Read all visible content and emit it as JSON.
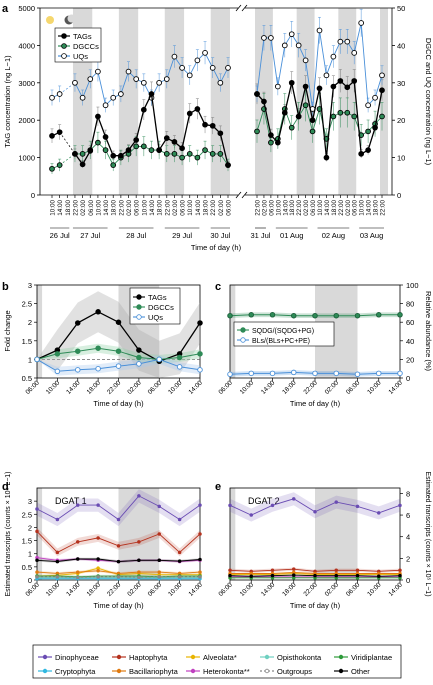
{
  "colors": {
    "night_band": "#d9d9d9",
    "tags": "#000000",
    "dgccs": "#2e8b57",
    "uqs": "#4a90d9",
    "dinophyceae": "#6a4cb3",
    "haptophyta": "#b5321e",
    "alveolata": "#e8b400",
    "bacillariophyta": "#e07a10",
    "heterokonta": "#c040c0",
    "opisthokonta": "#6fd0c0",
    "viridiplantae": "#2e9b3a",
    "cryptophyta": "#30b8e0",
    "outgroups": "#888888",
    "other": "#000000"
  },
  "icons": {
    "sun": "sun-icon",
    "moon": "moon-icon"
  },
  "chart_data": [
    {
      "panel": "a",
      "type": "line",
      "ylabel_left": "TAG concentration (ng L−1)",
      "ylabel_right": "DGCC and UQ concentration (ng L−1)",
      "xlabel": "Time of day (h)",
      "ylim_left": [
        0,
        5000
      ],
      "ylim_right": [
        0,
        50
      ],
      "yticks_left": [
        "0",
        "1000",
        "2000",
        "3000",
        "4000",
        "5000"
      ],
      "yticks_right": [
        "0",
        "10",
        "20",
        "30",
        "40",
        "50"
      ],
      "days": [
        "26 Jul",
        "27 Jul",
        "28 Jul",
        "29 Jul",
        "30 Jul",
        "31 Jul",
        "01 Aug",
        "02 Aug",
        "03 Aug"
      ],
      "legend": [
        "TAGs",
        "DGCCs",
        "UQs"
      ],
      "segment1": {
        "times": [
          "10:00",
          "14:00",
          "18:00",
          "22:00",
          "02:00",
          "06:00",
          "10:00",
          "14:00",
          "18:00",
          "22:00",
          "02:00",
          "06:00",
          "10:00",
          "14:00",
          "18:00",
          "22:00",
          "02:00",
          "06:00",
          "10:00",
          "14:00",
          "18:00",
          "22:00",
          "02:00",
          "06:00"
        ],
        "tags": [
          1580,
          1680,
          null,
          1100,
          820,
          1180,
          2100,
          1550,
          1050,
          1050,
          1200,
          1470,
          2280,
          2700,
          1200,
          1520,
          1420,
          1250,
          2180,
          2300,
          1880,
          1850,
          1650,
          800
        ],
        "dgccs": [
          7,
          8,
          null,
          11,
          11,
          12,
          14,
          12,
          8,
          10,
          11,
          13,
          13,
          12,
          12,
          11,
          11,
          10,
          11,
          10,
          12,
          11,
          11,
          8
        ],
        "uqs": [
          26,
          27,
          null,
          30,
          26,
          31,
          33,
          24,
          26,
          27,
          33,
          31,
          30,
          26,
          30,
          31,
          37,
          34,
          32,
          36,
          38,
          34,
          30,
          34
        ]
      },
      "segment2": {
        "times": [
          "22:00",
          "02:00",
          "06:00",
          "10:00",
          "14:00",
          "18:00",
          "22:00",
          "02:00",
          "06:00",
          "10:00",
          "14:00",
          "18:00",
          "22:00",
          "02:00",
          "06:00",
          "10:00",
          "14:00",
          "18:00",
          "22:00"
        ],
        "tags": [
          2700,
          2500,
          1600,
          1400,
          2200,
          3000,
          2100,
          2900,
          2000,
          2850,
          1000,
          2900,
          3050,
          2880,
          3050,
          1100,
          1200,
          1800,
          2800
        ],
        "dgccs": [
          17,
          23,
          14,
          15,
          23,
          18,
          21,
          24,
          17,
          23,
          15,
          21,
          22,
          22,
          21,
          16,
          17,
          19,
          21
        ],
        "uqs": [
          27,
          42,
          42,
          29,
          40,
          43,
          40,
          36,
          23,
          44,
          32,
          37,
          41,
          41,
          38,
          46,
          24,
          26,
          32
        ]
      }
    },
    {
      "panel": "b",
      "type": "line",
      "ylabel": "Fold change",
      "xlabel": "Time of day (h)",
      "ylim": [
        0.5,
        3.0
      ],
      "yticks": [
        "0.5",
        "1",
        "1.5",
        "2",
        "2.5",
        "3"
      ],
      "xticks": [
        "06:00",
        "10:00",
        "14:00",
        "18:00",
        "22:00",
        "02:00",
        "06:00",
        "10:00",
        "14:00"
      ],
      "legend": [
        "TAGs",
        "DGCCs",
        "UQs"
      ],
      "series": [
        {
          "name": "TAGs",
          "values": [
            1.0,
            1.25,
            1.98,
            2.28,
            2.0,
            1.25,
            0.95,
            1.15,
            1.98
          ]
        },
        {
          "name": "DGCCs",
          "values": [
            1.0,
            1.15,
            1.22,
            1.3,
            1.22,
            1.05,
            1.0,
            1.05,
            1.15
          ]
        },
        {
          "name": "UQs",
          "values": [
            1.0,
            0.68,
            0.72,
            0.75,
            0.82,
            0.88,
            1.0,
            0.8,
            0.72
          ]
        }
      ]
    },
    {
      "panel": "c",
      "type": "line",
      "ylabel": "Relative abundance (%)",
      "xlabel": "Time of day (h)",
      "ylim": [
        0,
        100
      ],
      "yticks": [
        "0",
        "20",
        "40",
        "60",
        "80",
        "100"
      ],
      "xticks": [
        "06:00",
        "10:00",
        "14:00",
        "18:00",
        "22:00",
        "02:00",
        "06:00",
        "10:00",
        "14:00"
      ],
      "legend": [
        "SQDG/(SQDG+PG)",
        "BLs/(BLs+PC+PE)"
      ],
      "series": [
        {
          "name": "SQDG/(SQDG+PG)",
          "values": [
            67,
            68,
            68,
            67,
            67,
            67,
            67,
            68,
            68
          ]
        },
        {
          "name": "BLs/(BLs+PC+PE)",
          "values": [
            4,
            5,
            5,
            6,
            5,
            5,
            4,
            5,
            5
          ]
        }
      ]
    },
    {
      "panel": "d",
      "type": "line",
      "title": "DGAT 1",
      "ylabel": "Estimated transcripts (counts × 10⁶ L−1)",
      "xlabel": "Time of day (h)",
      "ylim": [
        0,
        3.5
      ],
      "yticks": [
        "0",
        "0.5",
        "1",
        "1.5",
        "2",
        "2.5",
        "3"
      ],
      "xticks": [
        "06:00",
        "10:00",
        "14:00",
        "18:00",
        "22:00",
        "02:00",
        "06:00",
        "10:00",
        "14:00"
      ],
      "series": [
        {
          "name": "Dinophyceae",
          "values": [
            2.7,
            2.3,
            2.85,
            2.85,
            2.3,
            3.2,
            2.8,
            2.3,
            2.85
          ]
        },
        {
          "name": "Haptophyta",
          "values": [
            1.85,
            1.05,
            1.45,
            1.6,
            1.3,
            1.45,
            1.75,
            1.05,
            1.75
          ]
        },
        {
          "name": "Alveolata*",
          "values": [
            0.15,
            0.18,
            0.25,
            0.45,
            0.2,
            0.25,
            0.2,
            0.2,
            0.2
          ]
        },
        {
          "name": "Bacillariophyta",
          "values": [
            0.3,
            0.25,
            0.3,
            0.35,
            0.25,
            0.3,
            0.3,
            0.25,
            0.3
          ]
        },
        {
          "name": "Heterokonta**",
          "values": [
            0.85,
            0.75,
            0.8,
            0.75,
            0.7,
            0.75,
            0.75,
            0.7,
            0.75
          ]
        },
        {
          "name": "Opisthokonta",
          "values": [
            0.1,
            0.1,
            0.1,
            0.1,
            0.1,
            0.1,
            0.1,
            0.1,
            0.1
          ]
        },
        {
          "name": "Viridiplantae",
          "values": [
            0.15,
            0.15,
            0.12,
            0.15,
            0.15,
            0.15,
            0.12,
            0.15,
            0.15
          ]
        },
        {
          "name": "Cryptophyta",
          "values": [
            0.05,
            0.05,
            0.05,
            0.05,
            0.05,
            0.05,
            0.05,
            0.05,
            0.05
          ]
        },
        {
          "name": "Outgroups",
          "values": [
            0.12,
            0.12,
            0.1,
            0.12,
            0.12,
            0.1,
            0.12,
            0.12,
            0.12
          ]
        },
        {
          "name": "Other",
          "values": [
            0.75,
            0.7,
            0.8,
            0.8,
            0.7,
            0.75,
            0.75,
            0.72,
            0.78
          ]
        }
      ]
    },
    {
      "panel": "e",
      "type": "line",
      "title": "DGAT 2",
      "ylabel": "Estimated transcripts (counts × 10⁵ L−1)",
      "xlabel": "Time of day (h)",
      "ylim": [
        0,
        8.5
      ],
      "yticks": [
        "0",
        "2",
        "4",
        "6",
        "8"
      ],
      "xticks": [
        "06:00",
        "10:00",
        "14:00",
        "18:00",
        "22:00",
        "02:00",
        "06:00",
        "10:00",
        "14:00"
      ],
      "series": [
        {
          "name": "Dinophyceae",
          "values": [
            6.9,
            6.0,
            6.9,
            7.5,
            6.3,
            7.2,
            6.8,
            6.2,
            6.9
          ]
        },
        {
          "name": "Haptophyta",
          "values": [
            0.9,
            0.8,
            0.9,
            1.0,
            0.8,
            0.9,
            0.9,
            0.8,
            0.9
          ]
        },
        {
          "name": "Alveolata*",
          "values": [
            0.5,
            0.5,
            0.5,
            0.6,
            0.5,
            0.5,
            0.5,
            0.5,
            0.5
          ]
        },
        {
          "name": "Bacillariophyta",
          "values": [
            0.6,
            0.6,
            0.6,
            0.7,
            0.6,
            0.6,
            0.6,
            0.6,
            0.6
          ]
        },
        {
          "name": "Heterokonta**",
          "values": [
            0.3,
            0.3,
            0.3,
            0.3,
            0.3,
            0.3,
            0.3,
            0.3,
            0.3
          ]
        },
        {
          "name": "Viridiplantae",
          "values": [
            0.2,
            0.2,
            0.2,
            0.2,
            0.2,
            0.2,
            0.2,
            0.2,
            0.2
          ]
        },
        {
          "name": "Other",
          "values": [
            0.4,
            0.35,
            0.4,
            0.45,
            0.4,
            0.4,
            0.4,
            0.35,
            0.4
          ]
        }
      ]
    }
  ],
  "legend_bottom": [
    {
      "label": "Dinophyceae",
      "key": "dinophyceae"
    },
    {
      "label": "Haptophyta",
      "key": "haptophyta"
    },
    {
      "label": "Alveolata*",
      "key": "alveolata"
    },
    {
      "label": "Opisthokonta",
      "key": "opisthokonta"
    },
    {
      "label": "Viridiplantae",
      "key": "viridiplantae"
    },
    {
      "label": "Cryptophyta",
      "key": "cryptophyta"
    },
    {
      "label": "Bacillariophyta",
      "key": "bacillariophyta"
    },
    {
      "label": "Heterokonta**",
      "key": "heterokonta"
    },
    {
      "label": "Outgroups",
      "key": "outgroups"
    },
    {
      "label": "Other",
      "key": "other"
    }
  ],
  "panel_letters": [
    "a",
    "b",
    "c",
    "d",
    "e"
  ]
}
